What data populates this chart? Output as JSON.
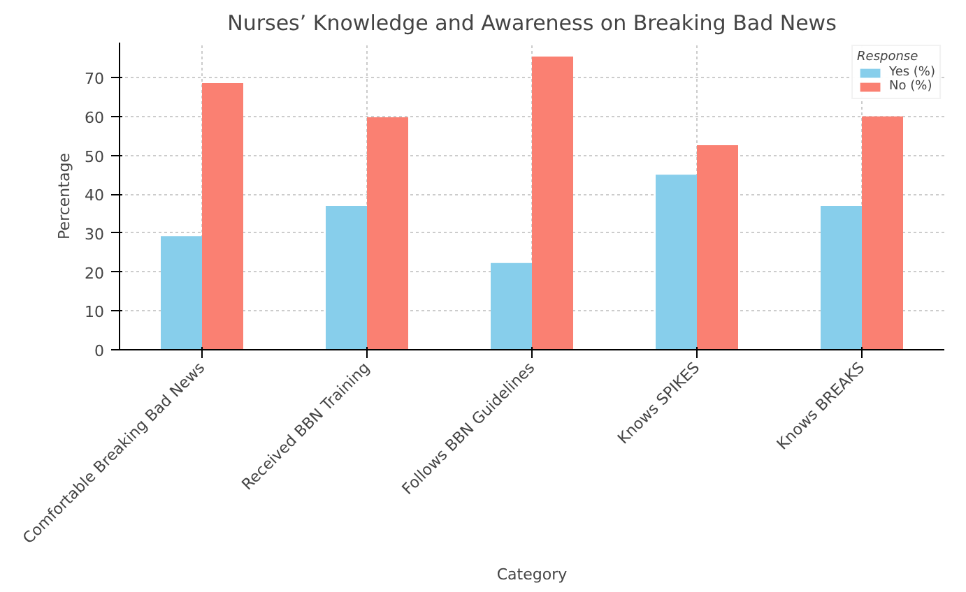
{
  "chart_data": {
    "type": "bar",
    "title": "Nurses’ Knowledge and Awareness on Breaking Bad News",
    "xlabel": "Category",
    "ylabel": "Percentage",
    "legend_title": "Response",
    "categories": [
      "Comfortable Breaking Bad News",
      "Received BBN Training",
      "Follows BBN Guidelines",
      "Knows SPIKES",
      "Knows BREAKS"
    ],
    "series": [
      {
        "name": "Yes (%)",
        "color": "#87ceeb",
        "values": [
          29.2,
          37.0,
          22.3,
          45.0,
          37.0
        ]
      },
      {
        "name": "No (%)",
        "color": "#fa8072",
        "values": [
          68.6,
          59.8,
          75.4,
          52.6,
          60.0
        ]
      }
    ],
    "ylim": [
      0,
      79
    ],
    "yticks": [
      0,
      10,
      20,
      30,
      40,
      50,
      60,
      70
    ],
    "grid": true,
    "legend": "top right"
  }
}
